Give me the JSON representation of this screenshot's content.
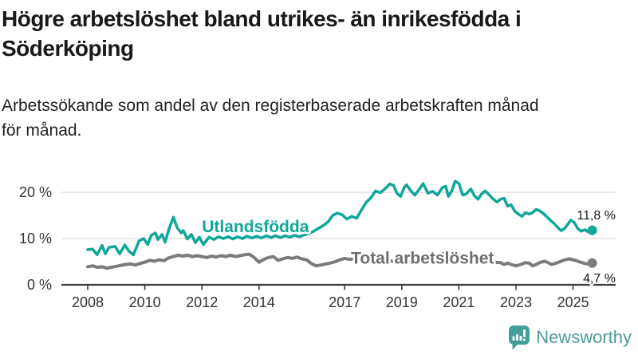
{
  "header": {
    "title_lines": [
      "Högre arbetslöshet bland utrikes- än inrikesfödda i",
      "Söderköping"
    ],
    "subtitle_lines": [
      "Arbetssökande som andel av den registerbaserade arbetskraften månad",
      "för månad."
    ]
  },
  "chart_data": {
    "type": "line",
    "unit": "%",
    "grid": "horizontal",
    "x_axis": {
      "range": [
        2007.1,
        2026.5
      ],
      "ticks": [
        2008,
        2010,
        2012,
        2014,
        2017,
        2019,
        2021,
        2023,
        2025
      ],
      "tick_labels": [
        "2008",
        "2010",
        "2012",
        "2014",
        "2017",
        "2019",
        "2021",
        "2023",
        "2025"
      ]
    },
    "y_axis": {
      "range": [
        0,
        24
      ],
      "ticks": [
        0,
        10,
        20
      ],
      "tick_labels": [
        "0 %",
        "10 %",
        "20 %"
      ]
    },
    "series": [
      {
        "name": "Utlandsfödda",
        "color": "#10a79a",
        "label_color": "#10a79a",
        "stroke_width": 3.5,
        "end_label": "11,8 %",
        "end_value": 11.8,
        "label_anchor": [
          2012.0,
          11.4
        ],
        "end_label_anchor": 14.1,
        "points": [
          [
            2008.0,
            7.6
          ],
          [
            2008.17,
            7.7
          ],
          [
            2008.33,
            6.5
          ],
          [
            2008.5,
            8.5
          ],
          [
            2008.62,
            6.7
          ],
          [
            2008.75,
            8.1
          ],
          [
            2008.96,
            8.3
          ],
          [
            2009.12,
            6.7
          ],
          [
            2009.3,
            8.6
          ],
          [
            2009.45,
            7.2
          ],
          [
            2009.6,
            6.5
          ],
          [
            2009.8,
            9.5
          ],
          [
            2009.96,
            10.0
          ],
          [
            2010.1,
            8.7
          ],
          [
            2010.23,
            10.7
          ],
          [
            2010.37,
            11.2
          ],
          [
            2010.46,
            9.8
          ],
          [
            2010.6,
            10.9
          ],
          [
            2010.71,
            9.2
          ],
          [
            2010.85,
            12.1
          ],
          [
            2011.0,
            14.6
          ],
          [
            2011.13,
            12.4
          ],
          [
            2011.27,
            11.2
          ],
          [
            2011.35,
            11.7
          ],
          [
            2011.49,
            9.9
          ],
          [
            2011.63,
            10.9
          ],
          [
            2011.77,
            9.1
          ],
          [
            2011.91,
            10.3
          ],
          [
            2012.05,
            8.7
          ],
          [
            2012.25,
            10.3
          ],
          [
            2012.42,
            9.8
          ],
          [
            2012.58,
            10.4
          ],
          [
            2012.75,
            10.0
          ],
          [
            2012.92,
            10.4
          ],
          [
            2013.08,
            9.9
          ],
          [
            2013.25,
            10.4
          ],
          [
            2013.42,
            10.0
          ],
          [
            2013.58,
            10.5
          ],
          [
            2013.75,
            10.1
          ],
          [
            2013.92,
            10.5
          ],
          [
            2014.08,
            10.1
          ],
          [
            2014.25,
            10.6
          ],
          [
            2014.42,
            10.2
          ],
          [
            2014.58,
            10.6
          ],
          [
            2014.75,
            10.2
          ],
          [
            2014.92,
            10.6
          ],
          [
            2015.08,
            10.3
          ],
          [
            2015.25,
            10.7
          ],
          [
            2015.42,
            10.4
          ],
          [
            2015.58,
            10.8
          ],
          [
            2015.75,
            11.1
          ],
          [
            2015.92,
            11.6
          ],
          [
            2016.08,
            12.2
          ],
          [
            2016.25,
            12.8
          ],
          [
            2016.42,
            13.6
          ],
          [
            2016.58,
            15.0
          ],
          [
            2016.75,
            15.5
          ],
          [
            2016.92,
            15.1
          ],
          [
            2017.08,
            14.2
          ],
          [
            2017.25,
            14.8
          ],
          [
            2017.42,
            14.4
          ],
          [
            2017.58,
            16.1
          ],
          [
            2017.75,
            17.8
          ],
          [
            2017.92,
            18.8
          ],
          [
            2018.08,
            20.3
          ],
          [
            2018.25,
            19.9
          ],
          [
            2018.42,
            20.8
          ],
          [
            2018.58,
            21.8
          ],
          [
            2018.71,
            21.5
          ],
          [
            2018.83,
            19.8
          ],
          [
            2018.96,
            19.1
          ],
          [
            2019.08,
            21.0
          ],
          [
            2019.17,
            21.6
          ],
          [
            2019.33,
            20.2
          ],
          [
            2019.46,
            19.4
          ],
          [
            2019.58,
            20.4
          ],
          [
            2019.75,
            21.9
          ],
          [
            2019.92,
            19.8
          ],
          [
            2020.08,
            20.2
          ],
          [
            2020.25,
            19.4
          ],
          [
            2020.42,
            21.0
          ],
          [
            2020.54,
            21.3
          ],
          [
            2020.63,
            19.1
          ],
          [
            2020.75,
            20.3
          ],
          [
            2020.87,
            22.4
          ],
          [
            2021.0,
            21.9
          ],
          [
            2021.13,
            19.4
          ],
          [
            2021.25,
            19.6
          ],
          [
            2021.42,
            20.7
          ],
          [
            2021.54,
            19.3
          ],
          [
            2021.67,
            18.5
          ],
          [
            2021.79,
            19.6
          ],
          [
            2021.92,
            20.3
          ],
          [
            2022.04,
            19.6
          ],
          [
            2022.17,
            18.7
          ],
          [
            2022.33,
            17.9
          ],
          [
            2022.46,
            18.5
          ],
          [
            2022.58,
            18.7
          ],
          [
            2022.71,
            17.0
          ],
          [
            2022.83,
            17.3
          ],
          [
            2022.96,
            15.9
          ],
          [
            2023.08,
            15.3
          ],
          [
            2023.21,
            14.8
          ],
          [
            2023.33,
            15.6
          ],
          [
            2023.46,
            15.3
          ],
          [
            2023.58,
            15.6
          ],
          [
            2023.71,
            16.3
          ],
          [
            2023.83,
            16.0
          ],
          [
            2023.96,
            15.4
          ],
          [
            2024.08,
            14.7
          ],
          [
            2024.21,
            13.9
          ],
          [
            2024.33,
            13.3
          ],
          [
            2024.46,
            12.4
          ],
          [
            2024.58,
            11.7
          ],
          [
            2024.71,
            12.2
          ],
          [
            2024.83,
            13.2
          ],
          [
            2024.92,
            14.0
          ],
          [
            2025.04,
            13.5
          ],
          [
            2025.17,
            12.1
          ],
          [
            2025.29,
            11.6
          ],
          [
            2025.42,
            11.9
          ],
          [
            2025.54,
            11.4
          ],
          [
            2025.67,
            11.8
          ]
        ]
      },
      {
        "name": "Total arbetslöshet",
        "color": "#7b7b7b",
        "label_color": "#6f6f6f",
        "stroke_width": 4,
        "end_label": "4,7 %",
        "end_value": 4.7,
        "label_anchor": [
          2017.22,
          4.57
        ],
        "end_label_anchor": 0.5,
        "points": [
          [
            2008.0,
            3.9
          ],
          [
            2008.17,
            4.1
          ],
          [
            2008.33,
            3.8
          ],
          [
            2008.5,
            3.9
          ],
          [
            2008.67,
            3.6
          ],
          [
            2008.83,
            3.8
          ],
          [
            2009.0,
            4.0
          ],
          [
            2009.17,
            4.2
          ],
          [
            2009.33,
            4.4
          ],
          [
            2009.5,
            4.5
          ],
          [
            2009.67,
            4.3
          ],
          [
            2009.83,
            4.6
          ],
          [
            2010.0,
            4.9
          ],
          [
            2010.17,
            5.3
          ],
          [
            2010.33,
            5.1
          ],
          [
            2010.5,
            5.4
          ],
          [
            2010.67,
            5.2
          ],
          [
            2010.83,
            5.8
          ],
          [
            2011.0,
            6.1
          ],
          [
            2011.17,
            6.4
          ],
          [
            2011.33,
            6.2
          ],
          [
            2011.5,
            6.4
          ],
          [
            2011.67,
            6.1
          ],
          [
            2011.83,
            6.3
          ],
          [
            2012.0,
            6.1
          ],
          [
            2012.17,
            5.9
          ],
          [
            2012.33,
            6.2
          ],
          [
            2012.5,
            6.0
          ],
          [
            2012.67,
            6.3
          ],
          [
            2012.83,
            6.1
          ],
          [
            2013.0,
            6.4
          ],
          [
            2013.17,
            6.1
          ],
          [
            2013.33,
            6.3
          ],
          [
            2013.5,
            6.5
          ],
          [
            2013.67,
            6.6
          ],
          [
            2013.83,
            5.9
          ],
          [
            2014.0,
            4.9
          ],
          [
            2014.17,
            5.5
          ],
          [
            2014.33,
            5.9
          ],
          [
            2014.5,
            6.1
          ],
          [
            2014.67,
            5.3
          ],
          [
            2014.83,
            5.6
          ],
          [
            2015.0,
            5.9
          ],
          [
            2015.17,
            5.7
          ],
          [
            2015.33,
            6.0
          ],
          [
            2015.5,
            5.6
          ],
          [
            2015.67,
            5.4
          ],
          [
            2015.83,
            4.6
          ],
          [
            2016.0,
            4.1
          ],
          [
            2016.17,
            4.3
          ],
          [
            2016.33,
            4.5
          ],
          [
            2016.5,
            4.7
          ],
          [
            2016.67,
            5.0
          ],
          [
            2016.83,
            5.4
          ],
          [
            2017.0,
            5.7
          ],
          [
            2017.17,
            5.5
          ],
          [
            2017.33,
            5.6
          ],
          [
            2017.5,
            5.3
          ],
          [
            2017.67,
            5.5
          ],
          [
            2017.83,
            5.2
          ],
          [
            2018.0,
            5.4
          ],
          [
            2018.25,
            5.1
          ],
          [
            2018.5,
            5.3
          ],
          [
            2018.75,
            5.0
          ],
          [
            2019.0,
            5.2
          ],
          [
            2019.25,
            4.9
          ],
          [
            2019.5,
            5.1
          ],
          [
            2019.75,
            5.3
          ],
          [
            2020.0,
            5.5
          ],
          [
            2020.25,
            6.4
          ],
          [
            2020.5,
            6.8
          ],
          [
            2020.75,
            6.6
          ],
          [
            2021.0,
            6.4
          ],
          [
            2021.25,
            6.0
          ],
          [
            2021.5,
            5.7
          ],
          [
            2021.75,
            5.4
          ],
          [
            2022.0,
            5.2
          ],
          [
            2022.25,
            4.9
          ],
          [
            2022.46,
            4.8
          ],
          [
            2022.58,
            4.4
          ],
          [
            2022.71,
            4.7
          ],
          [
            2022.83,
            4.4
          ],
          [
            2023.0,
            4.1
          ],
          [
            2023.17,
            4.4
          ],
          [
            2023.33,
            4.8
          ],
          [
            2023.46,
            4.7
          ],
          [
            2023.58,
            4.1
          ],
          [
            2023.71,
            4.4
          ],
          [
            2023.83,
            4.8
          ],
          [
            2024.0,
            5.1
          ],
          [
            2024.12,
            4.8
          ],
          [
            2024.25,
            4.4
          ],
          [
            2024.42,
            4.7
          ],
          [
            2024.58,
            5.1
          ],
          [
            2024.71,
            5.4
          ],
          [
            2024.87,
            5.6
          ],
          [
            2025.0,
            5.4
          ],
          [
            2025.12,
            5.2
          ],
          [
            2025.25,
            4.9
          ],
          [
            2025.42,
            4.6
          ],
          [
            2025.54,
            4.5
          ],
          [
            2025.67,
            4.7
          ]
        ]
      }
    ]
  },
  "branding": {
    "name": "Newsworthy",
    "icon": "newsworthy-logo-icon",
    "text_color": "#4d9c96",
    "icon_color": "#41a09a"
  }
}
